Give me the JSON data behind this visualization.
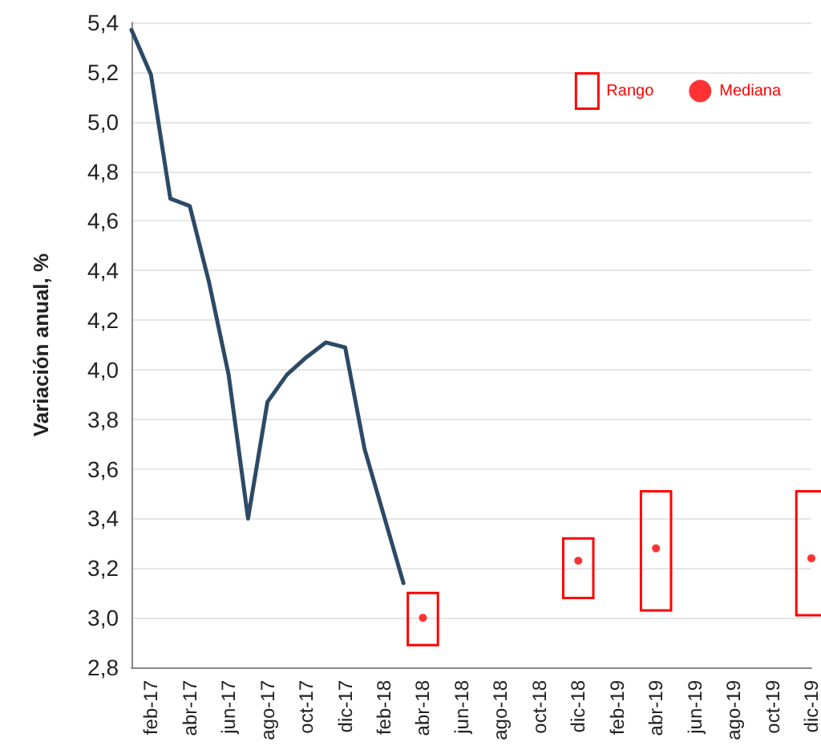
{
  "chart_data": {
    "type": "line",
    "ylabel": "Variación anual, %",
    "categories": [
      null,
      "feb-17",
      null,
      "abr-17",
      null,
      "jun-17",
      null,
      "ago-17",
      null,
      "oct-17",
      null,
      "dic-17",
      null,
      "feb-18",
      null,
      "abr-18",
      null,
      "jun-18",
      null,
      "ago-18",
      null,
      "oct-18",
      null,
      "dic-18",
      null,
      "feb-19",
      null,
      "abr-19",
      null,
      "jun-19",
      null,
      "ago-19",
      null,
      "oct-19",
      null,
      "dic-19"
    ],
    "series": [
      {
        "color": "#2c4a66",
        "marker": "none",
        "values": [
          5.37,
          5.19,
          4.69,
          4.66,
          4.35,
          3.98,
          3.4,
          3.87,
          3.98,
          4.05,
          4.11,
          4.09,
          3.68,
          3.41,
          3.14,
          null,
          null,
          null,
          null,
          null,
          null,
          null,
          null,
          null,
          null,
          null,
          null,
          null,
          null,
          null,
          null,
          null,
          null,
          null,
          null,
          null
        ]
      },
      {
        "type": "bar",
        "name": "Rango",
        "color": "#ff0000",
        "values": [
          null,
          null,
          null,
          null,
          null,
          null,
          null,
          null,
          null,
          null,
          null,
          null,
          null,
          null,
          null,
          0.21,
          null,
          null,
          null,
          null,
          null,
          null,
          null,
          0.24,
          null,
          null,
          null,
          0.48,
          null,
          null,
          null,
          null,
          null,
          null,
          null,
          0.5
        ],
        "base": [
          null,
          null,
          null,
          null,
          null,
          null,
          null,
          null,
          null,
          null,
          null,
          null,
          null,
          null,
          null,
          2.89,
          null,
          null,
          null,
          null,
          null,
          null,
          null,
          3.08,
          null,
          null,
          null,
          3.03,
          null,
          null,
          null,
          null,
          null,
          null,
          null,
          3.01
        ]
      },
      {
        "type": "scatter",
        "name": "Mediana",
        "color": "#ff0000",
        "marker": "circle",
        "values": [
          null,
          null,
          null,
          null,
          null,
          null,
          null,
          null,
          null,
          null,
          null,
          null,
          null,
          null,
          null,
          3.0,
          null,
          null,
          null,
          null,
          null,
          null,
          null,
          3.23,
          null,
          null,
          null,
          3.28,
          null,
          null,
          null,
          null,
          null,
          null,
          null,
          3.24
        ]
      }
    ],
    "ylim": [
      2.8,
      5.4
    ],
    "yticks": [
      {
        "value": 2.8,
        "label": "2,8"
      },
      {
        "value": 3.0,
        "label": "3,0"
      },
      {
        "value": 3.2,
        "label": "3,2"
      },
      {
        "value": 3.4,
        "label": "3,4"
      },
      {
        "value": 3.6,
        "label": "3,6"
      },
      {
        "value": 3.8,
        "label": "3,8"
      },
      {
        "value": 4.0,
        "label": "4,0"
      },
      {
        "value": 4.2,
        "label": "4,2"
      },
      {
        "value": 4.4,
        "label": "4,4"
      },
      {
        "value": 4.6,
        "label": "4,6"
      },
      {
        "value": 4.8,
        "label": "4,8"
      },
      {
        "value": 5.0,
        "label": "5,0"
      },
      {
        "value": 5.2,
        "label": "5,2"
      },
      {
        "value": 5.4,
        "label": "5,4"
      }
    ],
    "grid": "y",
    "legend": "top right",
    "line_style": "solid"
  }
}
